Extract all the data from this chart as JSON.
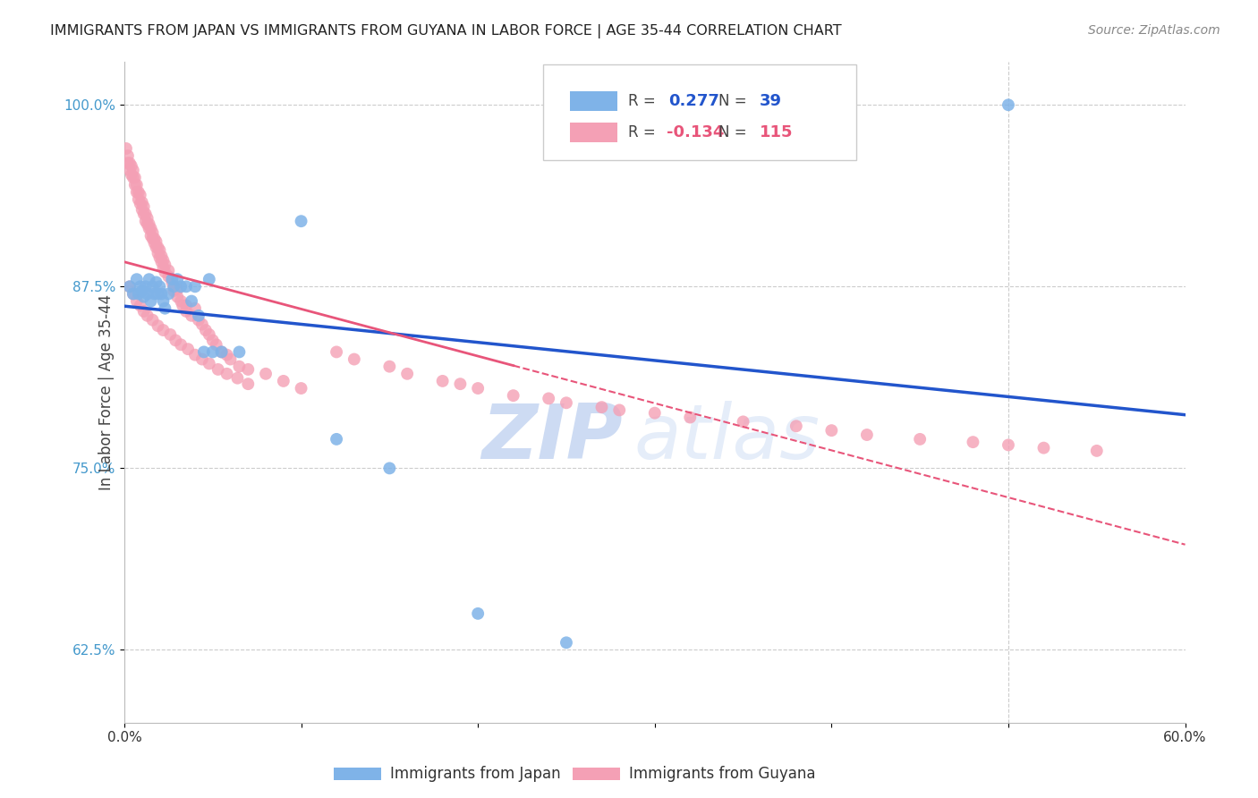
{
  "title": "IMMIGRANTS FROM JAPAN VS IMMIGRANTS FROM GUYANA IN LABOR FORCE | AGE 35-44 CORRELATION CHART",
  "source": "Source: ZipAtlas.com",
  "ylabel": "In Labor Force | Age 35-44",
  "xlim": [
    0.0,
    0.6
  ],
  "ylim": [
    0.575,
    1.03
  ],
  "japan_R": 0.277,
  "japan_N": 39,
  "guyana_R": -0.134,
  "guyana_N": 115,
  "japan_color": "#7fb3e8",
  "guyana_color": "#f4a0b5",
  "japan_line_color": "#2255cc",
  "guyana_line_color": "#e8557a",
  "background_color": "#ffffff",
  "grid_color": "#cccccc",
  "watermark_zip": "ZIP",
  "watermark_atlas": "atlas",
  "legend_label_japan": "Immigrants from Japan",
  "legend_label_guyana": "Immigrants from Guyana",
  "japan_scatter_x": [
    0.003,
    0.005,
    0.007,
    0.008,
    0.009,
    0.01,
    0.011,
    0.012,
    0.013,
    0.014,
    0.015,
    0.016,
    0.017,
    0.018,
    0.019,
    0.02,
    0.021,
    0.022,
    0.023,
    0.025,
    0.027,
    0.028,
    0.03,
    0.032,
    0.035,
    0.038,
    0.04,
    0.042,
    0.045,
    0.048,
    0.05,
    0.055,
    0.065,
    0.1,
    0.12,
    0.15,
    0.2,
    0.25,
    0.5
  ],
  "japan_scatter_y": [
    0.875,
    0.87,
    0.88,
    0.87,
    0.875,
    0.872,
    0.868,
    0.875,
    0.87,
    0.88,
    0.865,
    0.875,
    0.87,
    0.878,
    0.87,
    0.875,
    0.87,
    0.865,
    0.86,
    0.87,
    0.88,
    0.875,
    0.88,
    0.875,
    0.875,
    0.865,
    0.875,
    0.855,
    0.83,
    0.88,
    0.83,
    0.83,
    0.83,
    0.92,
    0.77,
    0.75,
    0.65,
    0.63,
    1.0
  ],
  "guyana_scatter_x": [
    0.001,
    0.002,
    0.002,
    0.003,
    0.003,
    0.004,
    0.004,
    0.005,
    0.005,
    0.006,
    0.006,
    0.007,
    0.007,
    0.008,
    0.008,
    0.009,
    0.009,
    0.01,
    0.01,
    0.011,
    0.011,
    0.012,
    0.012,
    0.013,
    0.013,
    0.014,
    0.014,
    0.015,
    0.015,
    0.016,
    0.016,
    0.017,
    0.017,
    0.018,
    0.018,
    0.019,
    0.019,
    0.02,
    0.02,
    0.021,
    0.021,
    0.022,
    0.022,
    0.023,
    0.023,
    0.025,
    0.025,
    0.027,
    0.028,
    0.028,
    0.03,
    0.03,
    0.032,
    0.033,
    0.035,
    0.035,
    0.038,
    0.04,
    0.042,
    0.044,
    0.046,
    0.048,
    0.05,
    0.052,
    0.055,
    0.058,
    0.06,
    0.065,
    0.07,
    0.08,
    0.09,
    0.1,
    0.12,
    0.13,
    0.15,
    0.16,
    0.18,
    0.19,
    0.2,
    0.22,
    0.24,
    0.25,
    0.27,
    0.28,
    0.3,
    0.32,
    0.35,
    0.38,
    0.4,
    0.42,
    0.45,
    0.48,
    0.5,
    0.52,
    0.55,
    0.003,
    0.005,
    0.007,
    0.009,
    0.011,
    0.013,
    0.016,
    0.019,
    0.022,
    0.026,
    0.029,
    0.032,
    0.036,
    0.04,
    0.044,
    0.048,
    0.053,
    0.058,
    0.064,
    0.07
  ],
  "guyana_scatter_y": [
    0.97,
    0.965,
    0.96,
    0.955,
    0.96,
    0.958,
    0.952,
    0.95,
    0.955,
    0.945,
    0.95,
    0.94,
    0.945,
    0.935,
    0.94,
    0.932,
    0.938,
    0.928,
    0.933,
    0.925,
    0.93,
    0.92,
    0.925,
    0.918,
    0.922,
    0.915,
    0.918,
    0.91,
    0.915,
    0.908,
    0.912,
    0.905,
    0.908,
    0.902,
    0.906,
    0.898,
    0.902,
    0.895,
    0.9,
    0.892,
    0.896,
    0.888,
    0.893,
    0.885,
    0.89,
    0.882,
    0.886,
    0.878,
    0.875,
    0.872,
    0.868,
    0.873,
    0.865,
    0.862,
    0.858,
    0.862,
    0.855,
    0.86,
    0.852,
    0.849,
    0.845,
    0.842,
    0.838,
    0.835,
    0.83,
    0.828,
    0.825,
    0.82,
    0.818,
    0.815,
    0.81,
    0.805,
    0.83,
    0.825,
    0.82,
    0.815,
    0.81,
    0.808,
    0.805,
    0.8,
    0.798,
    0.795,
    0.792,
    0.79,
    0.788,
    0.785,
    0.782,
    0.779,
    0.776,
    0.773,
    0.77,
    0.768,
    0.766,
    0.764,
    0.762,
    0.875,
    0.87,
    0.865,
    0.862,
    0.858,
    0.855,
    0.852,
    0.848,
    0.845,
    0.842,
    0.838,
    0.835,
    0.832,
    0.828,
    0.825,
    0.822,
    0.818,
    0.815,
    0.812,
    0.808
  ]
}
